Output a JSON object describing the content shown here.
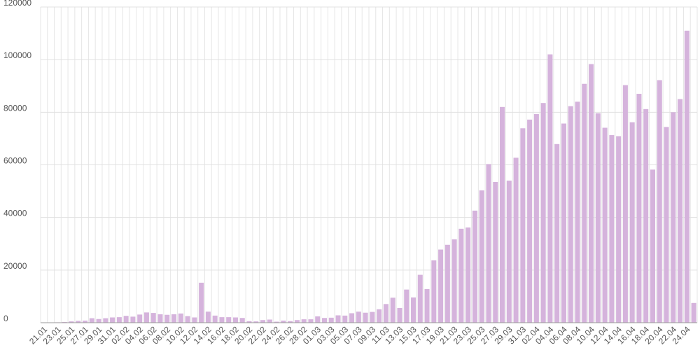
{
  "chart_data": {
    "type": "bar",
    "categories": [
      "21.01",
      null,
      "23.01",
      null,
      "25.01",
      null,
      "27.01",
      null,
      "29.01",
      null,
      "31.01",
      null,
      "02.02",
      null,
      "04.02",
      null,
      "06.02",
      null,
      "08.02",
      null,
      "10.02",
      null,
      "12.02",
      null,
      "14.02",
      null,
      "16.02",
      null,
      "18.02",
      null,
      "20.02",
      null,
      "22.02",
      null,
      "24.02",
      null,
      "26.02",
      null,
      "28.02",
      null,
      "01.03",
      null,
      "03.03",
      null,
      "05.03",
      null,
      "07.03",
      null,
      "09.03",
      null,
      "11.03",
      null,
      "13.03",
      null,
      "15.03",
      null,
      "17.03",
      null,
      "19.03",
      null,
      "21.03",
      null,
      "23.03",
      null,
      "25.03",
      null,
      "27.03",
      null,
      "29.03",
      null,
      "31.03",
      null,
      "02.04",
      null,
      "04.04",
      null,
      "06.04",
      null,
      "08.04",
      null,
      "10.04",
      null,
      "12.04",
      null,
      "14.04",
      null,
      "16.04",
      null,
      "18.04",
      null,
      "20.04",
      null,
      "22.04",
      null,
      "24.04",
      null
    ],
    "values": [
      0,
      100,
      150,
      250,
      500,
      700,
      800,
      1700,
      1400,
      1700,
      2000,
      2100,
      2600,
      2300,
      3100,
      3900,
      3700,
      3200,
      3000,
      3200,
      3500,
      2500,
      2000,
      15200,
      4200,
      2700,
      2100,
      2100,
      2000,
      1800,
      600,
      500,
      1000,
      1200,
      400,
      800,
      600,
      1000,
      1300,
      1300,
      2400,
      1800,
      1900,
      2800,
      2700,
      3600,
      4200,
      3800,
      4100,
      5100,
      7100,
      9500,
      5600,
      12600,
      9600,
      18200,
      12800,
      23700,
      27800,
      29600,
      31700,
      35700,
      36200,
      42600,
      50300,
      60300,
      53500,
      82000,
      54000,
      62700,
      73900,
      77200,
      79300,
      83500,
      102000,
      67900,
      75700,
      82300,
      84000,
      90800,
      98300,
      79600,
      74100,
      71300,
      70900,
      90300,
      76200,
      87000,
      81200,
      58200,
      92200,
      74400,
      80000,
      85000,
      111000,
      7500
    ],
    "color": "#d5b3dc",
    "ylim": [
      0,
      120000
    ],
    "yticks": [
      0,
      20000,
      40000,
      60000,
      80000,
      100000,
      120000
    ],
    "grid": true
  }
}
